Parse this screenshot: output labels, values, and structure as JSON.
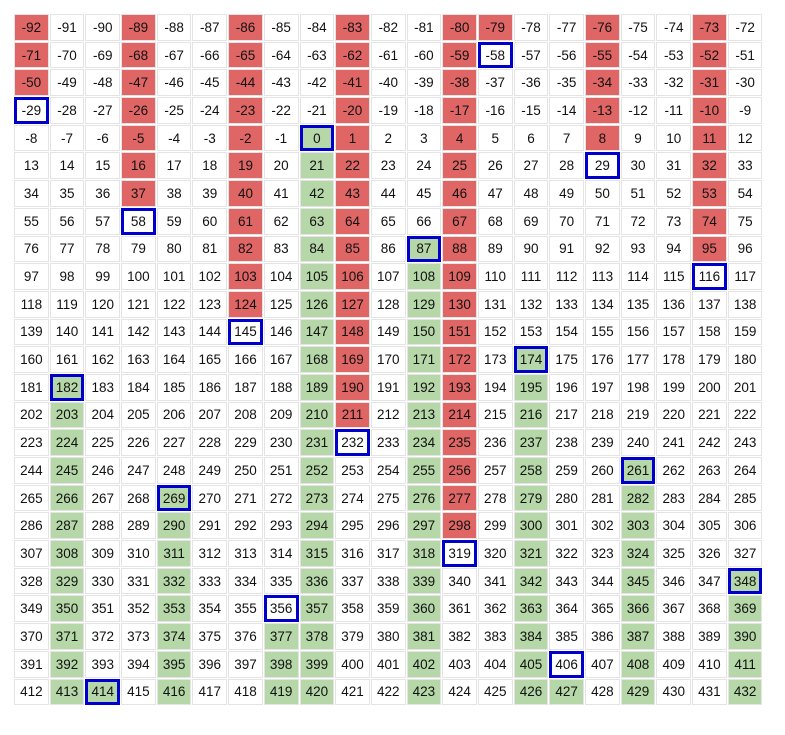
{
  "grid": {
    "fills": {
      "red": "#e06666",
      "green": "#b6d7a8"
    },
    "outline_color": "#0000cc",
    "rows": [
      [
        {
          "value": -92,
          "fill": "red"
        },
        -91,
        -90,
        {
          "value": -89,
          "fill": "red"
        },
        -88,
        -87,
        {
          "value": -86,
          "fill": "red"
        },
        -85,
        -84,
        {
          "value": -83,
          "fill": "red"
        },
        -82,
        -81,
        {
          "value": -80,
          "fill": "red"
        },
        {
          "value": -79,
          "fill": "red"
        },
        -78,
        -77,
        {
          "value": -76,
          "fill": "red"
        },
        -75,
        -74,
        {
          "value": -73,
          "fill": "red"
        },
        -72
      ],
      [
        {
          "value": -71,
          "fill": "red"
        },
        -70,
        -69,
        {
          "value": -68,
          "fill": "red"
        },
        -67,
        -66,
        {
          "value": -65,
          "fill": "red"
        },
        -64,
        -63,
        {
          "value": -62,
          "fill": "red"
        },
        -61,
        -60,
        {
          "value": -59,
          "fill": "red"
        },
        {
          "value": -58,
          "outline": true
        },
        -57,
        -56,
        {
          "value": -55,
          "fill": "red"
        },
        -54,
        -53,
        {
          "value": -52,
          "fill": "red"
        },
        -51
      ],
      [
        {
          "value": -50,
          "fill": "red"
        },
        -49,
        -48,
        {
          "value": -47,
          "fill": "red"
        },
        -46,
        -45,
        {
          "value": -44,
          "fill": "red"
        },
        -43,
        -42,
        {
          "value": -41,
          "fill": "red"
        },
        -40,
        -39,
        {
          "value": -38,
          "fill": "red"
        },
        -37,
        -36,
        -35,
        {
          "value": -34,
          "fill": "red"
        },
        -33,
        -32,
        {
          "value": -31,
          "fill": "red"
        },
        -30
      ],
      [
        {
          "value": -29,
          "outline": true
        },
        -28,
        -27,
        {
          "value": -26,
          "fill": "red"
        },
        -25,
        -24,
        {
          "value": -23,
          "fill": "red"
        },
        -22,
        -21,
        {
          "value": -20,
          "fill": "red"
        },
        -19,
        -18,
        {
          "value": -17,
          "fill": "red"
        },
        -16,
        -15,
        -14,
        {
          "value": -13,
          "fill": "red"
        },
        -12,
        -11,
        {
          "value": -10,
          "fill": "red"
        },
        -9
      ],
      [
        -8,
        -7,
        -6,
        {
          "value": -5,
          "fill": "red"
        },
        -4,
        -3,
        {
          "value": -2,
          "fill": "red"
        },
        -1,
        {
          "value": 0,
          "fill": "green",
          "outline": true
        },
        {
          "value": 1,
          "fill": "red"
        },
        2,
        3,
        {
          "value": 4,
          "fill": "red"
        },
        5,
        6,
        7,
        {
          "value": 8,
          "fill": "red"
        },
        9,
        10,
        {
          "value": 11,
          "fill": "red"
        },
        12
      ],
      [
        13,
        14,
        15,
        {
          "value": 16,
          "fill": "red"
        },
        17,
        18,
        {
          "value": 19,
          "fill": "red"
        },
        20,
        {
          "value": 21,
          "fill": "green"
        },
        {
          "value": 22,
          "fill": "red"
        },
        23,
        24,
        {
          "value": 25,
          "fill": "red"
        },
        26,
        27,
        28,
        {
          "value": 29,
          "outline": true
        },
        30,
        31,
        {
          "value": 32,
          "fill": "red"
        },
        33
      ],
      [
        34,
        35,
        36,
        {
          "value": 37,
          "fill": "red"
        },
        38,
        39,
        {
          "value": 40,
          "fill": "red"
        },
        41,
        {
          "value": 42,
          "fill": "green"
        },
        {
          "value": 43,
          "fill": "red"
        },
        44,
        45,
        {
          "value": 46,
          "fill": "red"
        },
        47,
        48,
        49,
        50,
        51,
        52,
        {
          "value": 53,
          "fill": "red"
        },
        54
      ],
      [
        55,
        56,
        57,
        {
          "value": 58,
          "outline": true
        },
        59,
        60,
        {
          "value": 61,
          "fill": "red"
        },
        62,
        {
          "value": 63,
          "fill": "green"
        },
        {
          "value": 64,
          "fill": "red"
        },
        65,
        66,
        {
          "value": 67,
          "fill": "red"
        },
        68,
        69,
        70,
        71,
        72,
        73,
        {
          "value": 74,
          "fill": "red"
        },
        75
      ],
      [
        76,
        77,
        78,
        79,
        80,
        81,
        {
          "value": 82,
          "fill": "red"
        },
        83,
        {
          "value": 84,
          "fill": "green"
        },
        {
          "value": 85,
          "fill": "red"
        },
        86,
        {
          "value": 87,
          "fill": "green",
          "outline": true
        },
        {
          "value": 88,
          "fill": "red"
        },
        89,
        90,
        91,
        92,
        93,
        94,
        {
          "value": 95,
          "fill": "red"
        },
        96
      ],
      [
        97,
        98,
        99,
        100,
        101,
        102,
        {
          "value": 103,
          "fill": "red"
        },
        104,
        {
          "value": 105,
          "fill": "green"
        },
        {
          "value": 106,
          "fill": "red"
        },
        107,
        {
          "value": 108,
          "fill": "green"
        },
        {
          "value": 109,
          "fill": "red"
        },
        110,
        111,
        112,
        113,
        114,
        115,
        {
          "value": 116,
          "outline": true
        },
        117
      ],
      [
        118,
        119,
        120,
        121,
        122,
        123,
        {
          "value": 124,
          "fill": "red"
        },
        125,
        {
          "value": 126,
          "fill": "green"
        },
        {
          "value": 127,
          "fill": "red"
        },
        128,
        {
          "value": 129,
          "fill": "green"
        },
        {
          "value": 130,
          "fill": "red"
        },
        131,
        132,
        133,
        134,
        135,
        136,
        137,
        138
      ],
      [
        139,
        140,
        141,
        142,
        143,
        144,
        {
          "value": 145,
          "outline": true
        },
        146,
        {
          "value": 147,
          "fill": "green"
        },
        {
          "value": 148,
          "fill": "red"
        },
        149,
        {
          "value": 150,
          "fill": "green"
        },
        {
          "value": 151,
          "fill": "red"
        },
        152,
        153,
        154,
        155,
        156,
        157,
        158,
        159
      ],
      [
        160,
        161,
        162,
        163,
        164,
        165,
        166,
        167,
        {
          "value": 168,
          "fill": "green"
        },
        {
          "value": 169,
          "fill": "red"
        },
        170,
        {
          "value": 171,
          "fill": "green"
        },
        {
          "value": 172,
          "fill": "red"
        },
        173,
        {
          "value": 174,
          "fill": "green",
          "outline": true
        },
        175,
        176,
        177,
        178,
        179,
        180
      ],
      [
        181,
        {
          "value": 182,
          "fill": "green",
          "outline": true
        },
        183,
        184,
        185,
        186,
        187,
        188,
        {
          "value": 189,
          "fill": "green"
        },
        {
          "value": 190,
          "fill": "red"
        },
        191,
        {
          "value": 192,
          "fill": "green"
        },
        {
          "value": 193,
          "fill": "red"
        },
        194,
        {
          "value": 195,
          "fill": "green"
        },
        196,
        197,
        198,
        199,
        200,
        201
      ],
      [
        202,
        {
          "value": 203,
          "fill": "green"
        },
        204,
        205,
        206,
        207,
        208,
        209,
        {
          "value": 210,
          "fill": "green"
        },
        {
          "value": 211,
          "fill": "red"
        },
        212,
        {
          "value": 213,
          "fill": "green"
        },
        {
          "value": 214,
          "fill": "red"
        },
        215,
        {
          "value": 216,
          "fill": "green"
        },
        217,
        218,
        219,
        220,
        221,
        222
      ],
      [
        223,
        {
          "value": 224,
          "fill": "green"
        },
        225,
        226,
        227,
        228,
        229,
        230,
        {
          "value": 231,
          "fill": "green"
        },
        {
          "value": 232,
          "outline": true
        },
        233,
        {
          "value": 234,
          "fill": "green"
        },
        {
          "value": 235,
          "fill": "red"
        },
        236,
        {
          "value": 237,
          "fill": "green"
        },
        238,
        239,
        240,
        241,
        242,
        243
      ],
      [
        244,
        {
          "value": 245,
          "fill": "green"
        },
        246,
        247,
        248,
        249,
        250,
        251,
        {
          "value": 252,
          "fill": "green"
        },
        253,
        254,
        {
          "value": 255,
          "fill": "green"
        },
        {
          "value": 256,
          "fill": "red"
        },
        257,
        {
          "value": 258,
          "fill": "green"
        },
        259,
        260,
        {
          "value": 261,
          "fill": "green",
          "outline": true
        },
        262,
        263,
        264
      ],
      [
        265,
        {
          "value": 266,
          "fill": "green"
        },
        267,
        268,
        {
          "value": 269,
          "fill": "green",
          "outline": true
        },
        270,
        271,
        272,
        {
          "value": 273,
          "fill": "green"
        },
        274,
        275,
        {
          "value": 276,
          "fill": "green"
        },
        {
          "value": 277,
          "fill": "red"
        },
        278,
        {
          "value": 279,
          "fill": "green"
        },
        280,
        281,
        {
          "value": 282,
          "fill": "green"
        },
        283,
        284,
        285
      ],
      [
        286,
        {
          "value": 287,
          "fill": "green"
        },
        288,
        289,
        {
          "value": 290,
          "fill": "green"
        },
        291,
        292,
        293,
        {
          "value": 294,
          "fill": "green"
        },
        295,
        296,
        {
          "value": 297,
          "fill": "green"
        },
        {
          "value": 298,
          "fill": "red"
        },
        299,
        {
          "value": 300,
          "fill": "green"
        },
        301,
        302,
        {
          "value": 303,
          "fill": "green"
        },
        304,
        305,
        306
      ],
      [
        307,
        {
          "value": 308,
          "fill": "green"
        },
        309,
        310,
        {
          "value": 311,
          "fill": "green"
        },
        312,
        313,
        314,
        {
          "value": 315,
          "fill": "green"
        },
        316,
        317,
        {
          "value": 318,
          "fill": "green"
        },
        {
          "value": 319,
          "outline": true
        },
        320,
        {
          "value": 321,
          "fill": "green"
        },
        322,
        323,
        {
          "value": 324,
          "fill": "green"
        },
        325,
        326,
        327
      ],
      [
        328,
        {
          "value": 329,
          "fill": "green"
        },
        330,
        331,
        {
          "value": 332,
          "fill": "green"
        },
        333,
        334,
        335,
        {
          "value": 336,
          "fill": "green"
        },
        337,
        338,
        {
          "value": 339,
          "fill": "green"
        },
        340,
        341,
        {
          "value": 342,
          "fill": "green"
        },
        343,
        344,
        {
          "value": 345,
          "fill": "green"
        },
        346,
        347,
        {
          "value": 348,
          "fill": "green",
          "outline": true
        }
      ],
      [
        349,
        {
          "value": 350,
          "fill": "green"
        },
        351,
        352,
        {
          "value": 353,
          "fill": "green"
        },
        354,
        355,
        {
          "value": 356,
          "outline": true
        },
        {
          "value": 357,
          "fill": "green"
        },
        358,
        359,
        {
          "value": 360,
          "fill": "green"
        },
        361,
        362,
        {
          "value": 363,
          "fill": "green"
        },
        364,
        365,
        {
          "value": 366,
          "fill": "green"
        },
        367,
        368,
        {
          "value": 369,
          "fill": "green"
        }
      ],
      [
        370,
        {
          "value": 371,
          "fill": "green"
        },
        372,
        373,
        {
          "value": 374,
          "fill": "green"
        },
        375,
        376,
        {
          "value": 377,
          "fill": "green"
        },
        {
          "value": 378,
          "fill": "green"
        },
        379,
        380,
        {
          "value": 381,
          "fill": "green"
        },
        382,
        383,
        {
          "value": 384,
          "fill": "green"
        },
        385,
        386,
        {
          "value": 387,
          "fill": "green"
        },
        388,
        389,
        {
          "value": 390,
          "fill": "green"
        }
      ],
      [
        391,
        {
          "value": 392,
          "fill": "green"
        },
        393,
        394,
        {
          "value": 395,
          "fill": "green"
        },
        396,
        397,
        {
          "value": 398,
          "fill": "green"
        },
        {
          "value": 399,
          "fill": "green"
        },
        400,
        401,
        {
          "value": 402,
          "fill": "green"
        },
        403,
        404,
        {
          "value": 405,
          "fill": "green"
        },
        {
          "value": 406,
          "outline": true
        },
        407,
        {
          "value": 408,
          "fill": "green"
        },
        409,
        410,
        {
          "value": 411,
          "fill": "green"
        }
      ],
      [
        412,
        {
          "value": 413,
          "fill": "green"
        },
        {
          "value": 414,
          "fill": "green",
          "outline": true
        },
        415,
        {
          "value": 416,
          "fill": "green"
        },
        417,
        418,
        {
          "value": 419,
          "fill": "green"
        },
        {
          "value": 420,
          "fill": "green"
        },
        421,
        422,
        {
          "value": 423,
          "fill": "green"
        },
        424,
        425,
        {
          "value": 426,
          "fill": "green"
        },
        {
          "value": 427,
          "fill": "green"
        },
        428,
        {
          "value": 429,
          "fill": "green"
        },
        430,
        431,
        {
          "value": 432,
          "fill": "green"
        }
      ]
    ]
  }
}
